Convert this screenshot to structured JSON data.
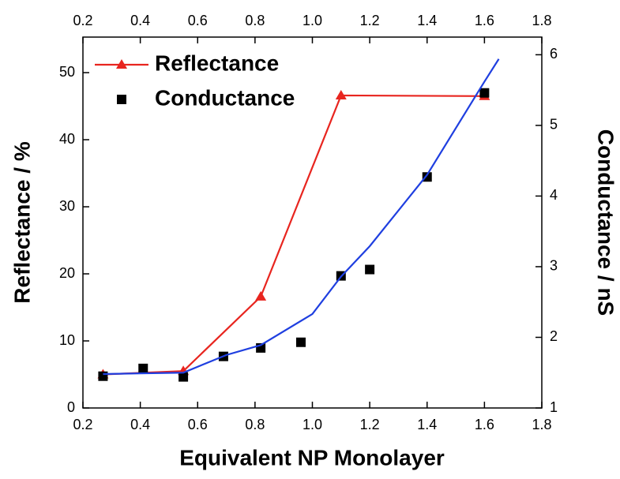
{
  "chart_data": {
    "type": "line",
    "xlabel": "Equivalent NP Monolayer",
    "ylabel": "Reflectance / %",
    "y2label": "Conductance  / nS",
    "xlim": [
      0.2,
      1.8
    ],
    "xticks": [
      0.2,
      0.4,
      0.6,
      0.8,
      {
        "value": 1,
        "label": "1.0"
      },
      1.2,
      1.4,
      1.6,
      1.8
    ],
    "ylim": [
      0,
      55.3
    ],
    "yticks": [
      0,
      10,
      20,
      30,
      40,
      50
    ],
    "y2lim": [
      1,
      6.25
    ],
    "y2ticks": [
      1,
      2,
      3,
      4,
      5,
      6
    ],
    "legend": "upper left",
    "series": [
      {
        "name": "Reflectance",
        "color": "#e8251f",
        "style": "line",
        "marker": "triangle",
        "x": [
          0.27,
          0.55,
          0.82,
          1.1,
          1.6
        ],
        "values": [
          5,
          5.5,
          16.6,
          46.6,
          46.5
        ]
      },
      {
        "name": "Conductance",
        "color": "#000000",
        "style": "scatter",
        "marker": "square",
        "axis": "y2",
        "x": [
          0.27,
          0.41,
          0.55,
          0.69,
          0.82,
          0.96,
          1.1,
          1.2,
          1.4,
          1.6
        ],
        "values": [
          1.45,
          1.56,
          1.44,
          1.73,
          1.85,
          1.93,
          2.87,
          2.96,
          4.27,
          5.46
        ]
      },
      {
        "color": "#1f3fe0",
        "style": "line",
        "axis": "y2",
        "x": [
          0.27,
          0.4,
          0.55,
          0.7,
          0.82,
          1.0,
          1.1,
          1.2,
          1.4,
          1.6,
          1.65
        ],
        "values": [
          1.48,
          1.49,
          1.5,
          1.75,
          1.89,
          2.33,
          2.86,
          3.29,
          4.3,
          5.62,
          5.94
        ]
      }
    ]
  }
}
